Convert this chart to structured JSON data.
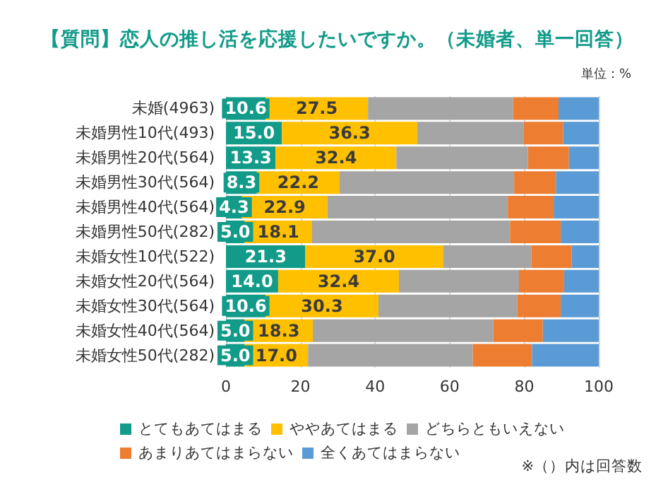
{
  "chart_data": {
    "type": "bar",
    "orientation": "horizontal",
    "stacked": true,
    "title": "【質問】恋人の推し活を応援したいですか。（未婚者、単一回答）",
    "categories": [
      "未婚(4963)",
      "未婚男性10代(493)",
      "未婚男性20代(564)",
      "未婚男性30代(564)",
      "未婚男性40代(564)",
      "未婚男性50代(282)",
      "未婚女性10代(522)",
      "未婚女性20代(564)",
      "未婚女性30代(564)",
      "未婚女性40代(564)",
      "未婚女性50代(282)"
    ],
    "series": [
      {
        "name": "とてもあてはまる",
        "color": "#139b8a",
        "values": [
          10.6,
          15.0,
          13.3,
          8.3,
          4.3,
          5.0,
          21.3,
          14.0,
          10.6,
          5.0,
          5.0
        ],
        "value_labels": [
          "10.6",
          "15.0",
          "13.3",
          "8.3",
          "4.3",
          "5.0",
          "21.3",
          "14.0",
          "10.6",
          "5.0",
          "5.0"
        ]
      },
      {
        "name": "ややあてはまる",
        "color": "#ffc000",
        "values": [
          27.5,
          36.3,
          32.4,
          22.2,
          22.9,
          18.1,
          37.0,
          32.4,
          30.3,
          18.3,
          17.0
        ],
        "value_labels": [
          "27.5",
          "36.3",
          "32.4",
          "22.2",
          "22.9",
          "18.1",
          "37.0",
          "32.4",
          "30.3",
          "18.3",
          "17.0"
        ]
      },
      {
        "name": "どちらともいえない",
        "color": "#a5a5a5",
        "values": [
          38.9,
          28.6,
          35.3,
          46.8,
          48.4,
          53.1,
          23.6,
          32.2,
          37.2,
          48.4,
          44.2
        ]
      },
      {
        "name": "あまりあてはまらない",
        "color": "#ed7d31",
        "values": [
          12.2,
          10.5,
          11.0,
          11.2,
          12.3,
          13.6,
          10.8,
          12.1,
          11.7,
          13.3,
          15.9
        ]
      },
      {
        "name": "全くあてはまらない",
        "color": "#5b9bd5",
        "values": [
          10.8,
          9.6,
          8.0,
          11.5,
          12.1,
          10.2,
          7.3,
          9.3,
          10.2,
          15.0,
          17.9
        ]
      }
    ],
    "xlim": [
      0,
      100
    ],
    "xticks": [
      0,
      20,
      40,
      60,
      80,
      100
    ],
    "grid": "x",
    "legend": "bottom",
    "annotations": [
      "単位：%",
      "※（）内は回答数"
    ]
  }
}
